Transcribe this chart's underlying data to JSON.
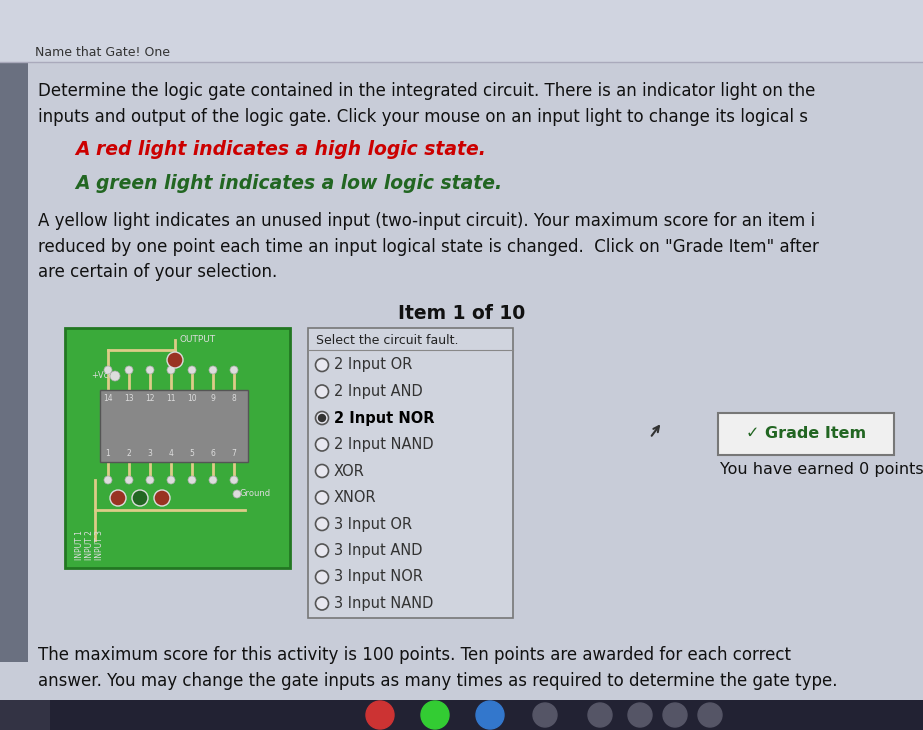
{
  "title_bar": "Name that Gate! One",
  "title_bar_bg": "#b8bcc8",
  "main_bg": "#b8bcc8",
  "body_bg": "#c8ccd8",
  "left_strip_bg": "#6a7080",
  "para1": "Determine the logic gate contained in the integrated circuit. There is an indicator light on the\ninputs and output of the logic gate. Click your mouse on an input light to change its logical s",
  "red_line": "A red light indicates a high logic state.",
  "green_line": "A green light indicates a low logic state.",
  "para2": "A yellow light indicates an unused input (two-input circuit). Your maximum score for an item i\nreduced by one point each time an input logical state is changed.  Click on \"Grade Item\" after\nare certain of your selection.",
  "item_label": "Item 1 of 10",
  "select_label": "Select the circuit fault.",
  "radio_options": [
    "2 Input OR",
    "2 Input AND",
    "2 Input NOR",
    "2 Input NAND",
    "XOR",
    "XNOR",
    "3 Input OR",
    "3 Input AND",
    "3 Input NOR",
    "3 Input NAND"
  ],
  "selected_option": 2,
  "grade_btn_text": "✓ Grade Item",
  "grade_btn_color": "#f0f0f0",
  "grade_btn_border": "#888888",
  "score_text": "You have earned 0 points.",
  "footer_text": "The maximum score for this activity is 100 points. Ten points are awarded for each correct\nanswer. You may change the gate inputs as many times as required to determine the gate type.",
  "circuit_bg": "#3aaa3a",
  "ic_chip_color": "#888888",
  "ic_text_color": "#eeeeee",
  "taskbar_bg": "#222233",
  "taskbar_circles": [
    "#dd3333",
    "#33aa33",
    "#3366cc",
    "#888888",
    "#888888",
    "#888888",
    "#888888"
  ]
}
